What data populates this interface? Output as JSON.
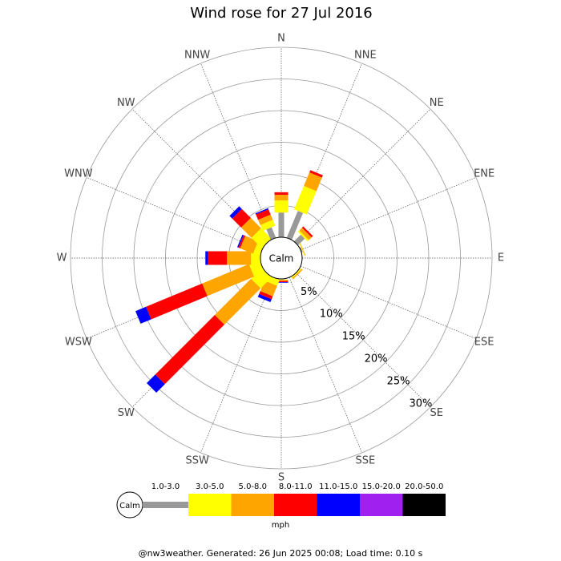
{
  "chart_data": {
    "type": "windrose",
    "title": "Wind rose for 27 Jul 2016",
    "directions": [
      "N",
      "NNE",
      "NE",
      "ENE",
      "E",
      "ESE",
      "SE",
      "SSE",
      "S",
      "SSW",
      "SW",
      "WSW",
      "W",
      "WNW",
      "NW",
      "NNW"
    ],
    "center_label": "Calm",
    "rlim": [
      0,
      30
    ],
    "rticks": [
      {
        "value": 5,
        "label": "5%"
      },
      {
        "value": 10,
        "label": "10%"
      },
      {
        "value": 15,
        "label": "15%"
      },
      {
        "value": 20,
        "label": "20%"
      },
      {
        "value": 25,
        "label": "25%"
      },
      {
        "value": 30,
        "label": "30%"
      }
    ],
    "series": [
      {
        "name": "1.0-3.0",
        "color": "#999999",
        "values": [
          3.9,
          4.6,
          1.5,
          0.2,
          0,
          0,
          0,
          0,
          0.1,
          0,
          0,
          0,
          0,
          0,
          0,
          1.8
        ]
      },
      {
        "name": "3.0-5.0",
        "color": "#ffff00",
        "values": [
          1.9,
          4.0,
          0.3,
          0.1,
          0,
          0,
          0.2,
          0,
          0.1,
          1.0,
          2.4,
          1.8,
          1.5,
          1.1,
          2.3,
          1.0
        ]
      },
      {
        "name": "5.0-8.0",
        "color": "#ffa500",
        "values": [
          0.9,
          2.3,
          0.6,
          0.1,
          0,
          0,
          0.2,
          0,
          0.1,
          1.8,
          8.1,
          8.0,
          3.8,
          2.2,
          2.3,
          0.9
        ]
      },
      {
        "name": "8.0-11.0",
        "color": "#ff0000",
        "values": [
          0.4,
          0.4,
          0.3,
          0,
          0,
          0,
          0,
          0,
          0.2,
          0.5,
          13.3,
          9.6,
          3.0,
          0.3,
          2.0,
          0.9
        ]
      },
      {
        "name": "11.0-15.0",
        "color": "#0000ff",
        "values": [
          0,
          0,
          0,
          0,
          0,
          0,
          0,
          0,
          0.1,
          0.5,
          1.9,
          1.8,
          0.4,
          0.2,
          0.6,
          0.2
        ]
      },
      {
        "name": "15.0-20.0",
        "color": "#a020f0",
        "values": [
          0,
          0,
          0,
          0,
          0,
          0,
          0,
          0,
          0,
          0,
          0,
          0,
          0,
          0,
          0,
          0
        ]
      },
      {
        "name": "20.0-50.0",
        "color": "#000000",
        "values": [
          0,
          0,
          0,
          0,
          0,
          0,
          0,
          0,
          0,
          0,
          0,
          0,
          0,
          0,
          0,
          0
        ]
      }
    ],
    "legend_unit": "mph",
    "footer": "@nw3weather. Generated: 26 Jun 2025 00:08; Load time: 0.10 s"
  }
}
